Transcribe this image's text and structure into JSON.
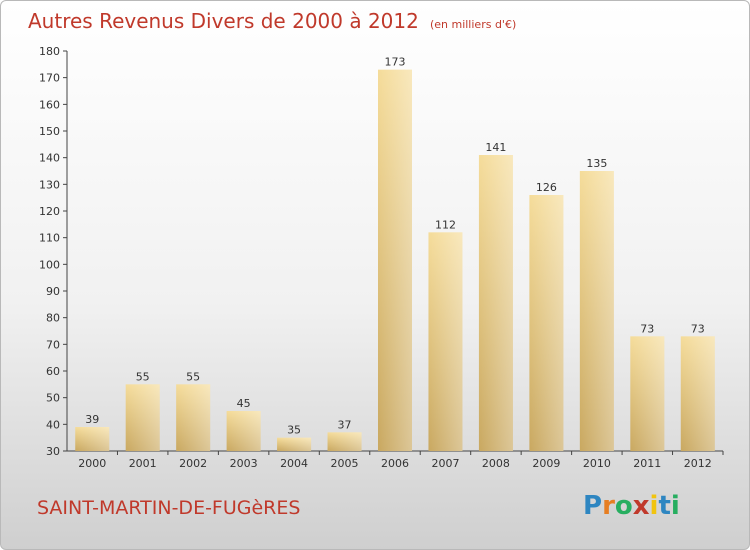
{
  "title": "Autres Revenus Divers de 2000 à 2012",
  "subtitle": "(en milliers d'€)",
  "commune": "SAINT-MARTIN-DE-FUGèRES",
  "logo": {
    "text": "Proxiti",
    "letters": [
      {
        "ch": "P",
        "color": "#2e86c1"
      },
      {
        "ch": "r",
        "color": "#e67e22"
      },
      {
        "ch": "o",
        "color": "#27ae60"
      },
      {
        "ch": "x",
        "color": "#c0392b"
      },
      {
        "ch": "i",
        "color": "#f1c40f"
      },
      {
        "ch": "t",
        "color": "#2e86c1"
      },
      {
        "ch": "i",
        "color": "#27ae60"
      }
    ]
  },
  "colors": {
    "bar_top": "#f5dc9a",
    "bar_bottom": "#c9a860",
    "title": "#c0392b"
  },
  "chart_data": {
    "type": "bar",
    "title": "Autres Revenus Divers de 2000 à 2012",
    "subtitle": "(en milliers d'€)",
    "categories": [
      "2000",
      "2001",
      "2002",
      "2003",
      "2004",
      "2005",
      "2006",
      "2007",
      "2008",
      "2009",
      "2010",
      "2011",
      "2012"
    ],
    "values": [
      39,
      55,
      55,
      45,
      35,
      37,
      173,
      112,
      141,
      126,
      135,
      73,
      73
    ],
    "ylim": [
      30,
      180
    ],
    "yticks": [
      30,
      40,
      50,
      60,
      70,
      80,
      90,
      100,
      110,
      120,
      130,
      140,
      150,
      160,
      170,
      180
    ],
    "grid": false,
    "xlabel": "",
    "ylabel": ""
  }
}
